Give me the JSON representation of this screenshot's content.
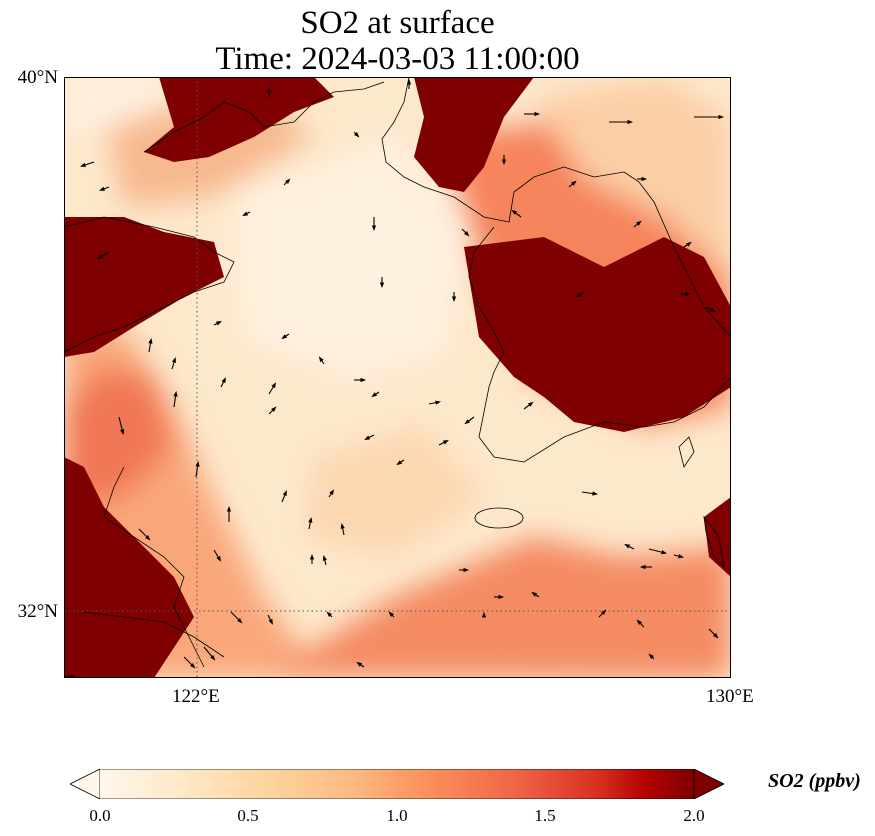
{
  "title": {
    "line1": "SO2 at surface",
    "line2": "Time: 2024-03-03 11:00:00"
  },
  "axes": {
    "lat_labels": [
      "40°N",
      "32°N"
    ],
    "lon_labels": [
      "122°E",
      "130°E"
    ],
    "extent": {
      "lon": [
        120,
        130
      ],
      "lat": [
        31,
        40
      ]
    },
    "gridlines": {
      "lon": [
        122
      ],
      "lat": [
        32
      ],
      "style": "dotted"
    }
  },
  "colorbar": {
    "label": "SO2 (ppbv)",
    "ticks": [
      "0.0",
      "0.5",
      "1.0",
      "1.5",
      "2.0"
    ],
    "range": [
      0,
      2
    ],
    "extend": "both",
    "colormap": "OrRd"
  },
  "colors": {
    "low": "#fff7ec",
    "mid": "#fdbb84",
    "high": "#ef6548",
    "max": "#7f0000",
    "coast": "#000000"
  }
}
